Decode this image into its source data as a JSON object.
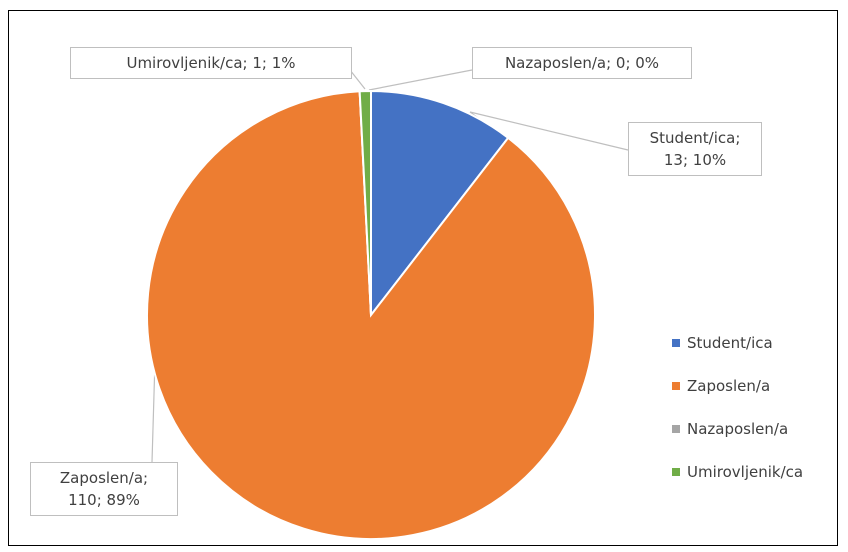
{
  "chart_data": {
    "type": "pie",
    "categories": [
      "Student/ica",
      "Zaposlen/a",
      "Nazaposlen/a",
      "Umirovljenik/ca"
    ],
    "values": [
      13,
      110,
      0,
      1
    ],
    "value_labels": [
      "Student/ica; 13; 10%",
      "Zaposlen/a; 110; 89%",
      "Nazaposlen/a; 0; 0%",
      "Umirovljenik/ca; 1; 1%"
    ],
    "colors": [
      "#4472c4",
      "#ed7d31",
      "#a5a5a5",
      "#70ad47"
    ],
    "legend": "right"
  }
}
